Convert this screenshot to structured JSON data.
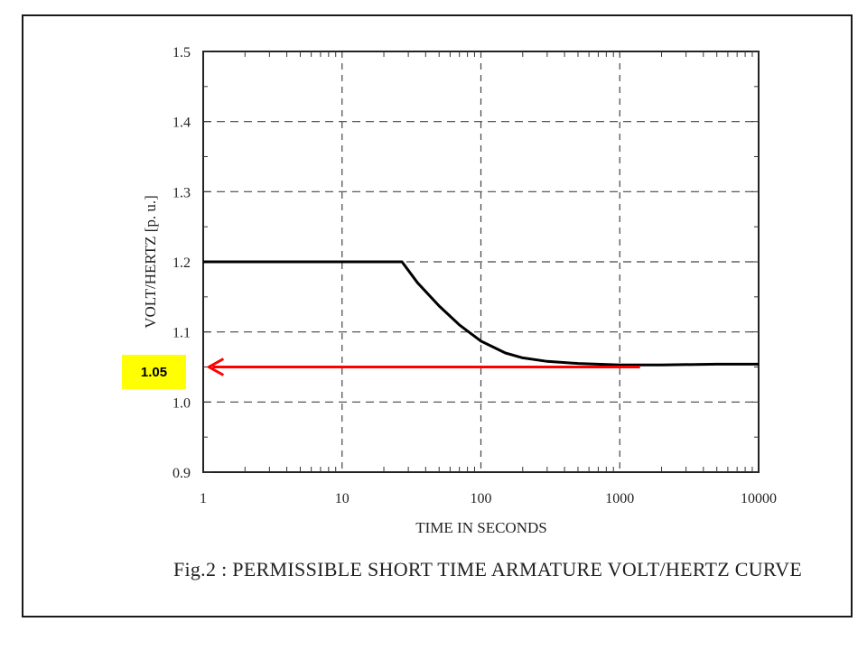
{
  "chart_data": {
    "type": "line",
    "title": "",
    "caption": "Fig.2 : PERMISSIBLE SHORT TIME ARMATURE VOLT/HERTZ CURVE",
    "xlabel": "TIME IN SECONDS",
    "ylabel": "VOLT/HERTZ [p. u.]",
    "x_scale": "log",
    "xlim": [
      1,
      10000
    ],
    "ylim": [
      0.9,
      1.5
    ],
    "x_ticks": [
      "1",
      "10",
      "100",
      "1000",
      "10000"
    ],
    "y_ticks": [
      "0.9",
      "1.0",
      "1.1",
      "1.2",
      "1.3",
      "1.4",
      "1.5"
    ],
    "grid": true,
    "series": [
      {
        "x": [
          1,
          10,
          20,
          27,
          35,
          50,
          70,
          100,
          150,
          200,
          300,
          500,
          1000,
          2000,
          5000,
          10000
        ],
        "y": [
          1.2,
          1.2,
          1.2,
          1.2,
          1.17,
          1.137,
          1.11,
          1.087,
          1.07,
          1.063,
          1.058,
          1.055,
          1.053,
          1.053,
          1.054,
          1.054
        ],
        "color": "#000000"
      }
    ],
    "annotation": {
      "label": "1.05",
      "arrow_y": 1.05,
      "arrow_from_x": 1400,
      "arrow_to_x": 1.1,
      "arrow_color": "#ff0000",
      "label_bg": "#ffff00"
    }
  }
}
